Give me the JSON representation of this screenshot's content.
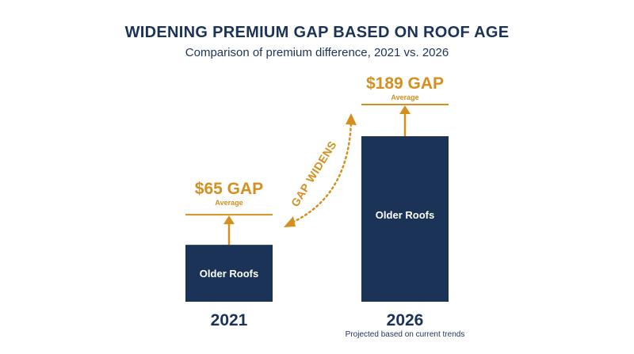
{
  "title": "WIDENING PREMIUM GAP BASED ON ROOF AGE",
  "subtitle": "Comparison of premium difference, 2021 vs. 2026",
  "colors": {
    "bar": "#1c3358",
    "accent": "#d4901f",
    "text": "#1c3358"
  },
  "arrow_label": "GAP WIDENS",
  "chart_data": {
    "type": "bar",
    "categories": [
      "2021",
      "2026"
    ],
    "values": [
      65,
      189
    ],
    "bar_labels": [
      "Older Roofs",
      "Older Roofs"
    ],
    "gap_labels": [
      "$65 GAP",
      "$189 GAP"
    ],
    "gap_sublabels": [
      "Average",
      "Average"
    ],
    "notes": [
      "",
      "Projected based on current trends"
    ],
    "title": "WIDENING PREMIUM GAP BASED ON ROOF AGE",
    "subtitle": "Comparison of premium difference, 2021 vs. 2026",
    "ylim": [
      0,
      189
    ],
    "grid": false,
    "legend": "none"
  }
}
